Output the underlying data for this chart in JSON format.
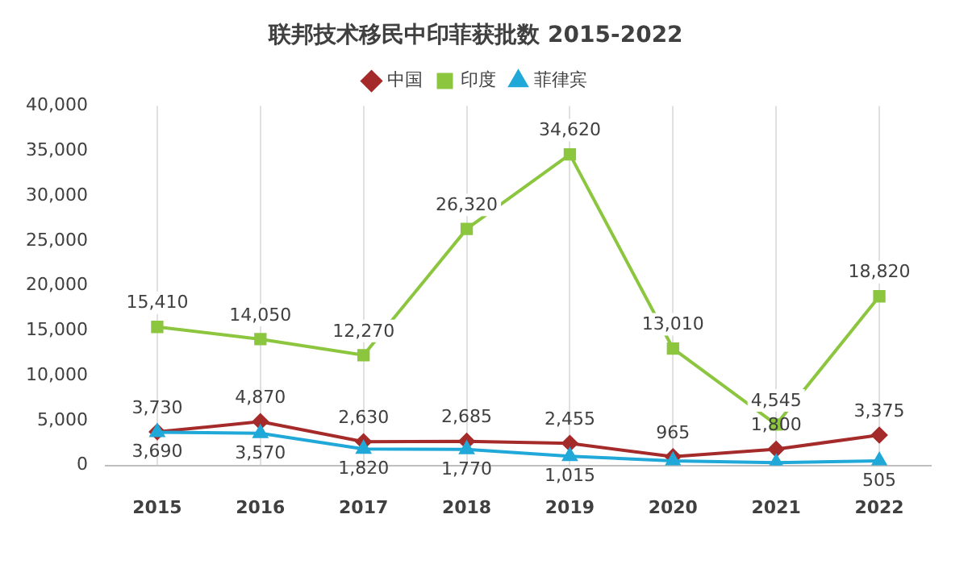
{
  "chart_data": {
    "type": "line",
    "title": "联邦技术移民中印菲获批数 2015-2022",
    "categories": [
      "2015",
      "2016",
      "2017",
      "2018",
      "2019",
      "2020",
      "2021",
      "2022"
    ],
    "series": [
      {
        "name": "中国",
        "color": "#a52a2a",
        "marker": "diamond",
        "values": [
          3730,
          4870,
          2630,
          2685,
          2455,
          965,
          1800,
          3375
        ],
        "value_labels": [
          "3,730",
          "4,870",
          "2,630",
          "2,685",
          "2,455",
          "965",
          "1,800",
          "3,375"
        ]
      },
      {
        "name": "印度",
        "color": "#8cc63f",
        "marker": "square",
        "values": [
          15410,
          14050,
          12270,
          26320,
          34620,
          13010,
          4545,
          18820
        ],
        "value_labels": [
          "15,410",
          "14,050",
          "12,270",
          "26,320",
          "34,620",
          "13,010",
          "4,545",
          "18,820"
        ]
      },
      {
        "name": "菲律宾",
        "color": "#1fa8d8",
        "marker": "triangle",
        "values": [
          3690,
          3570,
          1820,
          1770,
          1015,
          500,
          300,
          505
        ],
        "value_labels": [
          "3,690",
          "3,570",
          "1,820",
          "1,770",
          "1,015",
          null,
          null,
          "505"
        ]
      }
    ],
    "ylim": [
      0,
      40000
    ],
    "yticks": [
      0,
      {
        "value": 5000,
        "label": "5,000"
      },
      {
        "value": 10000,
        "label": "10,000"
      },
      {
        "value": 15000,
        "label": "15,000"
      },
      {
        "value": 20000,
        "label": "20,000"
      },
      {
        "value": 25000,
        "label": "25,000"
      },
      {
        "value": 30000,
        "label": "30,000"
      },
      {
        "value": 35000,
        "label": "35,000"
      },
      {
        "value": 40000,
        "label": "40,000"
      }
    ],
    "grid": "x",
    "legend": "top",
    "line_style": "solid"
  }
}
